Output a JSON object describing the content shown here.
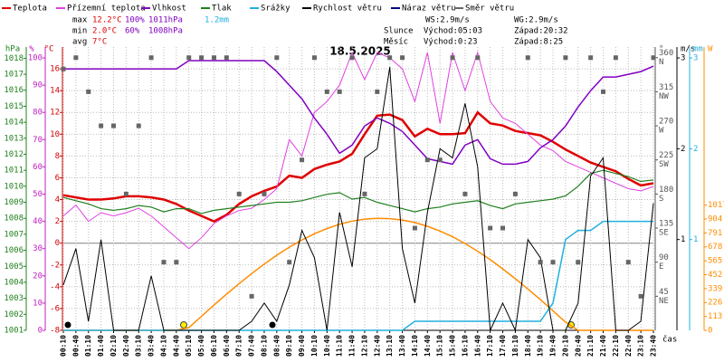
{
  "chart_data": {
    "type": "line",
    "title": "18.5.2025",
    "x_label": "čas",
    "categories": [
      "00:10",
      "00:40",
      "01:10",
      "01:40",
      "02:10",
      "02:40",
      "03:10",
      "03:40",
      "04:10",
      "04:40",
      "05:10",
      "05:40",
      "06:10",
      "06:40",
      "07:10",
      "07:40",
      "08:10",
      "08:40",
      "09:10",
      "09:40",
      "10:10",
      "10:40",
      "11:10",
      "11:40",
      "12:10",
      "12:40",
      "13:10",
      "13:40",
      "14:10",
      "14:40",
      "15:10",
      "15:40",
      "16:10",
      "16:40",
      "17:10",
      "17:40",
      "18:10",
      "18:40",
      "19:10",
      "19:40",
      "20:10",
      "20:40",
      "21:10",
      "21:40",
      "22:10",
      "22:40",
      "23:10",
      "23:40"
    ],
    "grid": true,
    "axes": [
      {
        "label": "hPa",
        "color": "#208020",
        "side": "left",
        "lim": [
          1001,
          1018.7
        ],
        "ticks": [
          1001,
          1002,
          1003,
          1004,
          1005,
          1006,
          1007,
          1008,
          1009,
          1010,
          1011,
          1012,
          1013,
          1014,
          1015,
          1016,
          1017,
          1018
        ]
      },
      {
        "label": "%",
        "color": "#c020c0",
        "side": "left",
        "lim": [
          0,
          104
        ],
        "ticks": [
          0,
          10,
          20,
          30,
          40,
          50,
          60,
          70,
          80,
          90,
          100
        ]
      },
      {
        "label": "°C",
        "color": "#d00000",
        "side": "left",
        "lim": [
          -8,
          18
        ],
        "ticks": [
          -8,
          -6,
          -4,
          -2,
          0,
          2,
          4,
          6,
          8,
          10,
          12,
          14,
          16
        ]
      },
      {
        "label": "°",
        "color": "#555555",
        "side": "right",
        "lim": [
          0,
          374
        ],
        "ticks": [
          {
            "value": 45,
            "label": "NE"
          },
          {
            "value": 90,
            "label": "E"
          },
          {
            "value": 135,
            "label": "SE"
          },
          {
            "value": 180,
            "label": "S"
          },
          {
            "value": 225,
            "label": "SW"
          },
          {
            "value": 270,
            "label": "W"
          },
          {
            "value": 315,
            "label": "NW"
          },
          {
            "value": 360,
            "label": "N"
          }
        ]
      },
      {
        "label": "m/s",
        "color": "#000000",
        "side": "right",
        "lim": [
          0,
          3.12
        ],
        "ticks": [
          1,
          2,
          3
        ]
      },
      {
        "label": "mm",
        "color": "#20b0e0",
        "side": "right",
        "lim": [
          0,
          3.12
        ],
        "ticks": [
          1,
          2,
          3
        ]
      },
      {
        "label": "W",
        "color": "#ff8c00",
        "side": "right",
        "lim": [
          0,
          2300
        ],
        "ticks": [
          0,
          113,
          226,
          339,
          452,
          565,
          678,
          791,
          904,
          1017
        ]
      }
    ],
    "series": [
      {
        "name": "Teplota",
        "color": "#e00000",
        "axis": 2,
        "width": 2.5,
        "values": [
          4.4,
          4.2,
          4.0,
          4.0,
          4.1,
          4.3,
          4.3,
          4.2,
          4.0,
          3.6,
          3.0,
          2.5,
          2.0,
          2.6,
          3.6,
          4.3,
          4.8,
          5.2,
          6.2,
          6.0,
          6.8,
          7.2,
          7.5,
          8.2,
          10.0,
          11.7,
          11.8,
          11.3,
          9.8,
          10.5,
          10.0,
          10.0,
          10.1,
          12.0,
          11.0,
          10.8,
          10.3,
          10.1,
          9.9,
          9.3,
          8.6,
          8.0,
          7.4,
          7.0,
          6.6,
          5.9,
          5.3,
          5.5
        ]
      },
      {
        "name": "Přízemní teplota",
        "color": "#e040e0",
        "axis": 2,
        "width": 1,
        "values": [
          2.5,
          3.5,
          2.0,
          2.8,
          2.5,
          2.8,
          3.2,
          2.5,
          1.5,
          0.5,
          -0.5,
          0.5,
          1.8,
          2.5,
          3.0,
          3.2,
          4.0,
          5.0,
          9.5,
          8.0,
          12.0,
          13.0,
          14.5,
          17.5,
          15.0,
          17.5,
          17.0,
          16.0,
          13.0,
          17.5,
          11.0,
          17.5,
          14.0,
          17.5,
          13.0,
          11.5,
          11.0,
          10.0,
          9.0,
          8.5,
          7.5,
          7.0,
          6.5,
          6.0,
          5.5,
          5.0,
          4.8,
          5.2
        ]
      },
      {
        "name": "Vlhkost",
        "color": "#8000c0",
        "axis": 1,
        "width": 1.5,
        "values": [
          96,
          96,
          96,
          96,
          96,
          96,
          96,
          96,
          96,
          96,
          99,
          99,
          99,
          99,
          99,
          99,
          99,
          95,
          90,
          85,
          78,
          72,
          65,
          68,
          75,
          78,
          76,
          73,
          68,
          63,
          62,
          61,
          68,
          70,
          63,
          61,
          61,
          62,
          67,
          70,
          75,
          82,
          88,
          93,
          93,
          94,
          95,
          97
        ]
      },
      {
        "name": "Tlak",
        "color": "#208020",
        "axis": 0,
        "width": 1.2,
        "values": [
          1009.3,
          1009.1,
          1008.9,
          1008.6,
          1008.5,
          1008.6,
          1008.8,
          1008.7,
          1008.4,
          1008.6,
          1008.6,
          1008.3,
          1008.5,
          1008.6,
          1008.7,
          1008.8,
          1008.9,
          1009.0,
          1009.0,
          1009.1,
          1009.3,
          1009.5,
          1009.6,
          1009.2,
          1009.3,
          1009.0,
          1008.8,
          1008.6,
          1008.4,
          1008.6,
          1008.7,
          1008.9,
          1009.0,
          1009.1,
          1008.8,
          1008.6,
          1008.9,
          1009.0,
          1009.1,
          1009.2,
          1009.4,
          1010.0,
          1010.8,
          1011.0,
          1010.8,
          1010.6,
          1010.3,
          1010.4
        ]
      },
      {
        "name": "Srážky",
        "color": "#20b0e0",
        "axis": 5,
        "width": 1.5,
        "values": [
          0,
          0,
          0,
          0,
          0,
          0,
          0,
          0,
          0,
          0,
          0,
          0,
          0,
          0,
          0,
          0,
          0,
          0,
          0,
          0,
          0,
          0,
          0,
          0,
          0,
          0,
          0,
          0,
          0.1,
          0.1,
          0.1,
          0.1,
          0.1,
          0.1,
          0.1,
          0.1,
          0.1,
          0.1,
          0.1,
          0.3,
          1.0,
          1.1,
          1.1,
          1.2,
          1.2,
          1.2,
          1.2,
          1.2
        ]
      },
      {
        "name": "Rychlost větru",
        "color": "#000000",
        "axis": 4,
        "width": 1,
        "values": [
          0.5,
          0.9,
          0.1,
          1.0,
          0,
          0,
          0,
          0.6,
          0,
          0,
          0,
          0,
          0,
          0,
          0,
          0.1,
          0.3,
          0.1,
          0.5,
          1.1,
          0.8,
          0,
          1.3,
          0.7,
          1.9,
          2.0,
          2.9,
          0.9,
          0.3,
          1.3,
          2.0,
          1.9,
          2.5,
          1.8,
          0,
          0.3,
          0,
          1.0,
          0.8,
          0,
          0,
          0.3,
          1.7,
          1.9,
          0,
          0,
          0.1,
          1.4
        ]
      },
      {
        "name": "Náraz větru",
        "color": "#000080",
        "axis": 4,
        "width": 1,
        "values": [
          null,
          null,
          null,
          null,
          null,
          null,
          null,
          null,
          null,
          null,
          null,
          null,
          null,
          null,
          null,
          null,
          null,
          null,
          null,
          null,
          null,
          null,
          null,
          null,
          null,
          null,
          null,
          null,
          null,
          null,
          null,
          null,
          null,
          null,
          null,
          null,
          null,
          null,
          null,
          null,
          null,
          null,
          null,
          null,
          null,
          null,
          null,
          null
        ]
      },
      {
        "name": "Směr větru",
        "color": "#666666",
        "axis": 3,
        "marker": "square",
        "values": [
          345,
          360,
          315,
          270,
          270,
          180,
          270,
          360,
          90,
          90,
          360,
          360,
          360,
          360,
          180,
          45,
          180,
          360,
          90,
          225,
          360,
          315,
          315,
          360,
          180,
          315,
          360,
          360,
          135,
          225,
          225,
          360,
          180,
          360,
          135,
          135,
          180,
          360,
          90,
          90,
          360,
          90,
          360,
          315,
          360,
          90,
          45,
          360
        ]
      }
    ],
    "solar": {
      "color": "#ff8c00",
      "axis": 6,
      "values": [
        0,
        0,
        0,
        0,
        0,
        0,
        0,
        0,
        0,
        0,
        22,
        114,
        205,
        293,
        379,
        461,
        538,
        610,
        675,
        733,
        784,
        827,
        861,
        887,
        903,
        910,
        907,
        896,
        875,
        845,
        806,
        760,
        705,
        642,
        574,
        499,
        419,
        336,
        249,
        159,
        67,
        0,
        0,
        0,
        0,
        0,
        0,
        0
      ]
    },
    "stats": [
      [
        "max",
        "12.2°C",
        "100%",
        "1011hPa",
        "1.2mm"
      ],
      [
        "min",
        "2.0°C",
        "60%",
        "1008hPa"
      ],
      [
        "avg",
        "7°C"
      ]
    ],
    "info": [
      [
        "WS:2.9m/s",
        "WG:2.9m/s"
      ],
      [
        "Slunce",
        "Východ:05:03",
        "Západ:20:32"
      ],
      [
        "Měsíc",
        "Východ:0:23",
        "Západ:8:25"
      ]
    ]
  }
}
